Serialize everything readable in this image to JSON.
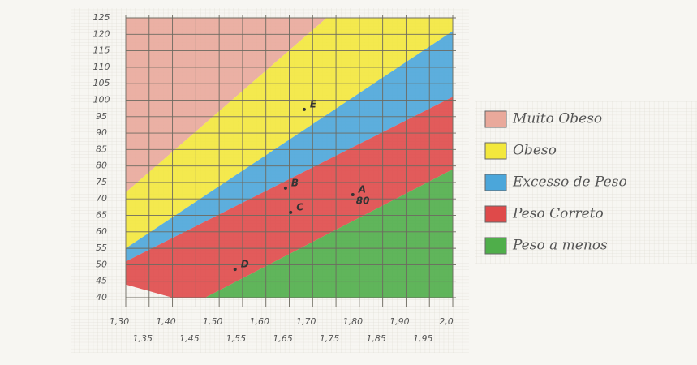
{
  "chart_data": {
    "type": "area",
    "xlim": [
      1.3,
      2.0
    ],
    "ylim": [
      40,
      125
    ],
    "xticks": [
      {
        "value": 1.3,
        "label": "1,30"
      },
      {
        "value": 1.35,
        "label": "1,35"
      },
      {
        "value": 1.4,
        "label": "1,40"
      },
      {
        "value": 1.45,
        "label": "1,45"
      },
      {
        "value": 1.5,
        "label": "1,50"
      },
      {
        "value": 1.55,
        "label": "1,55"
      },
      {
        "value": 1.6,
        "label": "1,60"
      },
      {
        "value": 1.65,
        "label": "1,65"
      },
      {
        "value": 1.7,
        "label": "1,70"
      },
      {
        "value": 1.75,
        "label": "1,75"
      },
      {
        "value": 1.8,
        "label": "1,80"
      },
      {
        "value": 1.85,
        "label": "1,85"
      },
      {
        "value": 1.9,
        "label": "1,90"
      },
      {
        "value": 1.95,
        "label": "1,95"
      },
      {
        "value": 2.0,
        "label": "2,0"
      }
    ],
    "yticks": [
      40,
      45,
      50,
      55,
      60,
      65,
      70,
      75,
      80,
      85,
      90,
      95,
      100,
      105,
      110,
      115,
      120,
      125
    ],
    "grid": true,
    "bands": [
      {
        "name": "Muito Obeso",
        "color": "#e9a99b",
        "x": [
          1.3,
          1.73,
          1.3
        ],
        "y": [
          125,
          125,
          72
        ]
      },
      {
        "name": "Obeso",
        "color": "#f3e83c",
        "x": [
          1.3,
          1.73,
          2.0,
          2.0,
          1.3
        ],
        "y": [
          72,
          125,
          125,
          121,
          55
        ]
      },
      {
        "name": "Excesso de Peso",
        "color": "#4ba6da",
        "x": [
          1.3,
          2.0,
          2.0,
          1.3
        ],
        "y": [
          55,
          121,
          101,
          51
        ]
      },
      {
        "name": "Peso Correto",
        "color": "#df4a4a",
        "x": [
          1.3,
          2.0,
          2.0,
          1.47,
          1.4,
          1.3
        ],
        "y": [
          51,
          101,
          79,
          40,
          40,
          44
        ]
      },
      {
        "name": "Peso a menos",
        "color": "#4fae4a",
        "x": [
          1.47,
          2.0,
          2.0
        ],
        "y": [
          40,
          79,
          40
        ]
      }
    ],
    "points": {
      "labels": [
        "A",
        "B",
        "C",
        "D",
        "E"
      ],
      "x": [
        1.786,
        1.642,
        1.653,
        1.534,
        1.682
      ],
      "y": [
        71.3,
        73.3,
        65.9,
        48.6,
        97.2
      ]
    },
    "annotation": "80"
  }
}
